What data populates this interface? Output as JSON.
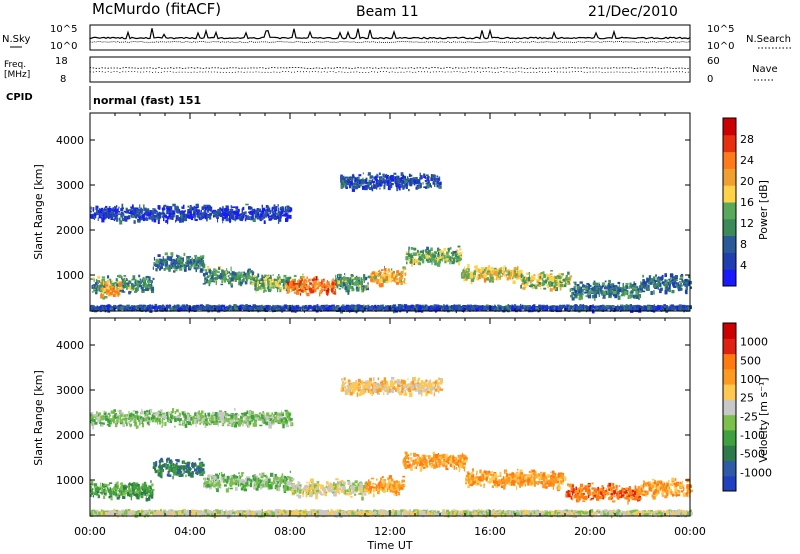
{
  "header": {
    "title": "McMurdo (fitACF)",
    "beam": "Beam 11",
    "date": "21/Dec/2010"
  },
  "top_panels": {
    "nsky_label": "N.Sky",
    "nsky_ticks": [
      "10^5",
      "10^0"
    ],
    "nsearch_label": "N.Search",
    "nsearch_ticks": [
      "10^5",
      "10^0"
    ],
    "freq_label_1": "Freq.",
    "freq_label_2": "[MHz]",
    "freq_ticks": [
      "18",
      "8"
    ],
    "nave_label": "Nave",
    "nave_ticks": [
      "60",
      "0"
    ],
    "cpid_label": "CPID",
    "cpid_value": "normal (fast) 151"
  },
  "colors": {
    "power_scale": [
      "#1a1aff",
      "#1f3fb0",
      "#2a5a9a",
      "#3b8a5a",
      "#5aa85a",
      "#ffd24a",
      "#f0a030",
      "#ff7a1a",
      "#e83010",
      "#cc0000"
    ],
    "velocity_scale": [
      "#2040c0",
      "#2e5aa8",
      "#2e7a4a",
      "#3fa03f",
      "#7ac04a",
      "#c8c8c8",
      "#ffc850",
      "#ff9a20",
      "#ff7a10",
      "#e02010",
      "#cc0000"
    ]
  },
  "chart_data": [
    {
      "type": "heatmap",
      "name": "power",
      "ylabel": "Slant Range [km]",
      "xlabel": "",
      "x_ticks": [
        "00:00",
        "04:00",
        "08:00",
        "12:00",
        "16:00",
        "20:00",
        "00:00"
      ],
      "y_ticks": [
        1000,
        2000,
        3000,
        4000
      ],
      "ylim": [
        200,
        4600
      ],
      "xlim_hours": [
        0,
        24
      ],
      "colorbar_label": "Power [dB]",
      "colorbar_ticks": [
        28,
        24,
        20,
        16,
        12,
        8,
        4
      ],
      "colorbar_range": [
        0,
        32
      ],
      "bands": [
        {
          "t0": 0,
          "t1": 24,
          "r": 300,
          "val": 6
        },
        {
          "t0": 0,
          "t1": 2.5,
          "r": 800,
          "val": 12
        },
        {
          "t0": 0.4,
          "t1": 1.2,
          "r": 700,
          "val": 20
        },
        {
          "t0": 2.5,
          "t1": 4.5,
          "r": 1300,
          "val": 10
        },
        {
          "t0": 4.5,
          "t1": 6.5,
          "r": 1000,
          "val": 12
        },
        {
          "t0": 6.5,
          "t1": 8.5,
          "r": 850,
          "val": 14
        },
        {
          "t0": 7.8,
          "t1": 9.8,
          "r": 780,
          "val": 24
        },
        {
          "t0": 9.8,
          "t1": 11.2,
          "r": 850,
          "val": 12
        },
        {
          "t0": 11.2,
          "t1": 12.6,
          "r": 1000,
          "val": 20
        },
        {
          "t0": 12.6,
          "t1": 14.8,
          "r": 1450,
          "val": 14
        },
        {
          "t0": 14.8,
          "t1": 17.2,
          "r": 1050,
          "val": 18
        },
        {
          "t0": 17.2,
          "t1": 19.2,
          "r": 900,
          "val": 16
        },
        {
          "t0": 19.2,
          "t1": 22,
          "r": 700,
          "val": 10
        },
        {
          "t0": 22,
          "t1": 24,
          "r": 850,
          "val": 8
        },
        {
          "t0": 10,
          "t1": 14,
          "r": 3100,
          "val": 6
        },
        {
          "t0": 0,
          "t1": 8,
          "r": 2400,
          "val": 5
        }
      ]
    },
    {
      "type": "heatmap",
      "name": "velocity",
      "ylabel": "Slant Range [km]",
      "xlabel": "Time UT",
      "x_ticks": [
        "00:00",
        "04:00",
        "08:00",
        "12:00",
        "16:00",
        "20:00",
        "00:00"
      ],
      "y_ticks": [
        1000,
        2000,
        3000,
        4000
      ],
      "ylim": [
        200,
        4600
      ],
      "xlim_hours": [
        0,
        24
      ],
      "colorbar_label": "Velocity [m s⁻¹]",
      "colorbar_ticks": [
        "1000",
        "500",
        "100",
        "25",
        "-25",
        "-100",
        "-500",
        "-1000"
      ],
      "bands": [
        {
          "t0": 0,
          "t1": 24,
          "r": 300,
          "val": 5
        },
        {
          "t0": 0,
          "t1": 2.5,
          "r": 800,
          "val": 3
        },
        {
          "t0": 2.5,
          "t1": 4.5,
          "r": 1300,
          "val": 2
        },
        {
          "t0": 4.5,
          "t1": 8,
          "r": 1000,
          "val": 4
        },
        {
          "t0": 8,
          "t1": 11,
          "r": 850,
          "val": 5
        },
        {
          "t0": 11,
          "t1": 12.5,
          "r": 900,
          "val": 7
        },
        {
          "t0": 12.5,
          "t1": 15,
          "r": 1450,
          "val": 7
        },
        {
          "t0": 15,
          "t1": 19,
          "r": 1050,
          "val": 7
        },
        {
          "t0": 19,
          "t1": 22,
          "r": 750,
          "val": 8
        },
        {
          "t0": 22,
          "t1": 24,
          "r": 850,
          "val": 7
        },
        {
          "t0": 10,
          "t1": 14,
          "r": 3100,
          "val": 6
        },
        {
          "t0": 0,
          "t1": 8,
          "r": 2400,
          "val": 4
        }
      ]
    }
  ]
}
